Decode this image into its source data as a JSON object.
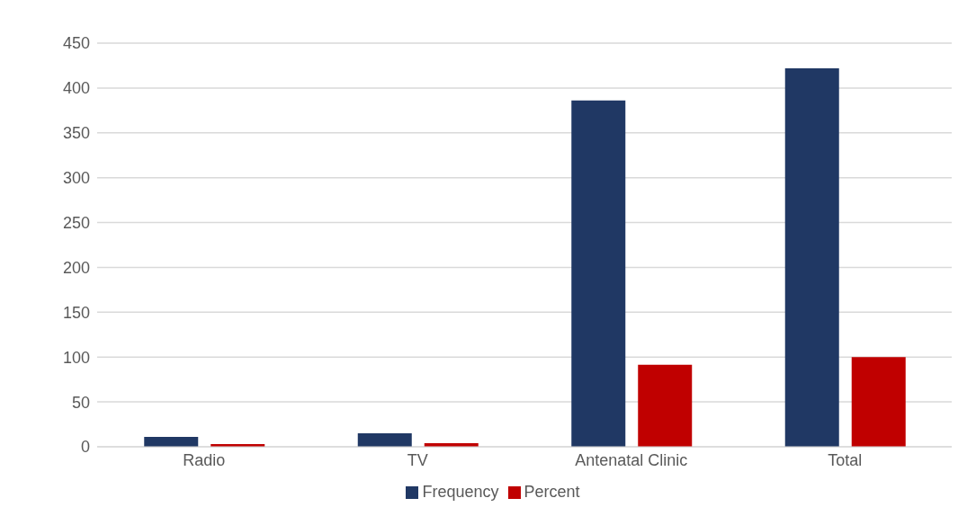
{
  "chart_data": {
    "type": "bar",
    "categories": [
      "Radio",
      "TV",
      "Antenatal Clinic",
      "Total"
    ],
    "series": [
      {
        "name": "Frequency",
        "color": "#203864",
        "values": [
          11,
          15,
          386,
          422
        ]
      },
      {
        "name": "Percent",
        "color": "#c00000",
        "values": [
          3,
          4,
          91.5,
          100
        ]
      }
    ],
    "ylim": [
      0,
      450
    ],
    "yticks": [
      0,
      50,
      100,
      150,
      200,
      250,
      300,
      350,
      400,
      450
    ],
    "grid": "y",
    "legend": "bottom"
  }
}
